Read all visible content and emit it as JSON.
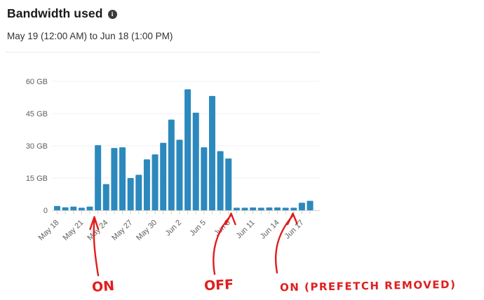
{
  "header": {
    "title": "Bandwidth used",
    "subtitle": "May 19 (12:00 AM) to Jun 18 (1:00 PM)",
    "info_icon_glyph": "i"
  },
  "colors": {
    "bar": "#2c89bd",
    "annotation_red": "#e11d1d",
    "grid": "#f3f2f1",
    "axis": "#d2d0ce",
    "axis_text": "#605e5c",
    "title_text": "#1b1a19"
  },
  "chart_data": {
    "type": "bar",
    "title": "Bandwidth used",
    "xlabel": "",
    "ylabel": "",
    "unit": "GB",
    "ylim": [
      0,
      60
    ],
    "grid": true,
    "legend": "none",
    "yticks": [
      {
        "value": 0,
        "label": "0"
      },
      {
        "value": 15,
        "label": "15 GB"
      },
      {
        "value": 30,
        "label": "30 GB"
      },
      {
        "value": 45,
        "label": "45 GB"
      },
      {
        "value": 60,
        "label": "60 GB"
      }
    ],
    "x_tick_every": 3,
    "x_tick_labels": [
      "May 18",
      "May 21",
      "May 24",
      "May 27",
      "May 30",
      "Jun 2",
      "Jun 5",
      "Jun 8",
      "Jun 11",
      "Jun 14",
      "Jun 17"
    ],
    "categories": [
      "May 18",
      "May 19",
      "May 20",
      "May 21",
      "May 22",
      "May 23",
      "May 24",
      "May 25",
      "May 26",
      "May 27",
      "May 28",
      "May 29",
      "May 30",
      "May 31",
      "Jun 1",
      "Jun 2",
      "Jun 3",
      "Jun 4",
      "Jun 5",
      "Jun 6",
      "Jun 7",
      "Jun 8",
      "Jun 9",
      "Jun 10",
      "Jun 11",
      "Jun 12",
      "Jun 13",
      "Jun 14",
      "Jun 15",
      "Jun 16",
      "Jun 17",
      "Jun 18"
    ],
    "values": [
      2.0,
      1.4,
      1.7,
      1.2,
      1.7,
      30.3,
      12.2,
      29.0,
      29.3,
      15.0,
      16.5,
      23.7,
      26.0,
      31.4,
      42.2,
      32.8,
      56.3,
      45.4,
      29.3,
      53.2,
      27.5,
      24.1,
      1.2,
      1.2,
      1.3,
      1.2,
      1.3,
      1.3,
      1.2,
      1.2,
      3.5,
      4.4
    ]
  },
  "annotations": [
    {
      "label": "ON",
      "target_date": "May 23"
    },
    {
      "label": "OFF",
      "target_date": "Jun 9"
    },
    {
      "label": "ON (PREFETCH REMOVED)",
      "target_date": "Jun 17"
    }
  ]
}
